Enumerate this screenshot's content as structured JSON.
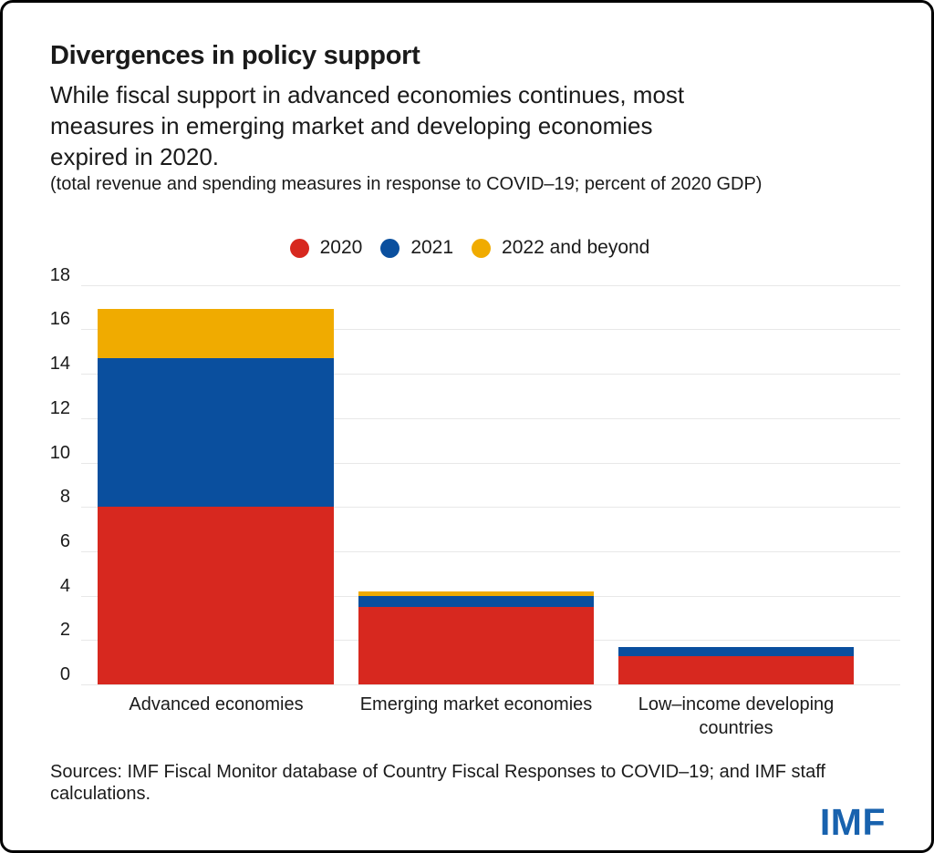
{
  "header": {
    "title": "Divergences in policy support",
    "subtitle": "While fiscal support in advanced economies continues, most\nmeasures in emerging market and developing economies\nexpired in 2020.",
    "note": "(total revenue and spending measures in response to COVID–19; percent of 2020 GDP)"
  },
  "legend": [
    {
      "label": "2020",
      "color": "#d7281f"
    },
    {
      "label": "2021",
      "color": "#0a4f9e"
    },
    {
      "label": "2022 and beyond",
      "color": "#f0ab00"
    }
  ],
  "chart_data": {
    "type": "bar",
    "stacked": true,
    "categories": [
      "Advanced economies",
      "Emerging market economies",
      "Low–income developing countries"
    ],
    "series": [
      {
        "name": "2020",
        "color": "#d7281f",
        "values": [
          8.0,
          3.5,
          1.3
        ]
      },
      {
        "name": "2021",
        "color": "#0a4f9e",
        "values": [
          6.7,
          0.5,
          0.4
        ]
      },
      {
        "name": "2022 and beyond",
        "color": "#f0ab00",
        "values": [
          2.2,
          0.2,
          0
        ]
      }
    ],
    "title": "Divergences in policy support",
    "xlabel": "",
    "ylabel": "percent of 2020 GDP",
    "ylim": [
      0,
      18
    ],
    "yticks": [
      0,
      2,
      4,
      6,
      8,
      10,
      12,
      14,
      16,
      18
    ],
    "grid": true,
    "legend_position": "top"
  },
  "footer": {
    "sources": "Sources: IMF Fiscal Monitor database of Country Fiscal Responses to COVID–19; and IMF staff\ncalculations.",
    "logo": "IMF"
  },
  "colors": {
    "series_2020": "#d7281f",
    "series_2021": "#0a4f9e",
    "series_2022": "#f0ab00",
    "text": "#1a1a1a",
    "gridline": "#e8e8e8",
    "imf_logo_blue": "#1862ae"
  }
}
